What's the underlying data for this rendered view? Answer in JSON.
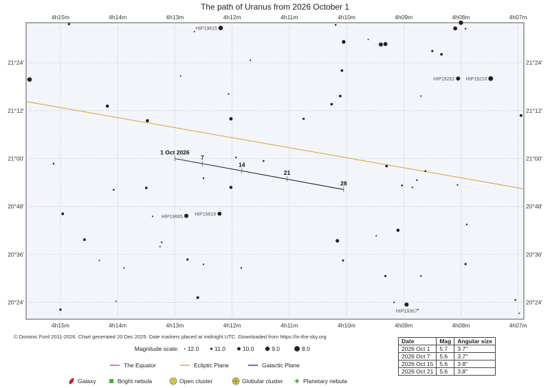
{
  "chart_data": {
    "type": "scatter",
    "title": "The path of Uranus from 2026 October 1",
    "ra_ticks_top": [
      "4h15m",
      "4h14m",
      "4h13m",
      "4h12m",
      "4h11m",
      "4h10m",
      "4h09m",
      "4h08m",
      "4h07m"
    ],
    "ra_ticks_bottom": [
      "4h15m",
      "4h14m",
      "4h13m",
      "4h12m",
      "4h11m",
      "4h10m",
      "4h09m",
      "4h08m",
      "4h07m"
    ],
    "ra_minutes": [
      15,
      14,
      13,
      12,
      11,
      10,
      9,
      8,
      7
    ],
    "dec_ticks": [
      "21°24'",
      "21°12'",
      "21°00'",
      "20°48'",
      "20°36'",
      "20°24'"
    ],
    "dec_values": [
      21.4,
      21.2,
      21.0,
      20.8,
      20.6,
      20.4
    ],
    "xlim_ra_minutes": [
      15.6,
      6.9
    ],
    "ylim_dec_deg": [
      20.33,
      21.567
    ],
    "grid": true,
    "ecliptic": [
      {
        "ra_min": 15.6,
        "dec": 21.238
      },
      {
        "ra_min": 6.9,
        "dec": 20.874
      }
    ],
    "path": {
      "start": {
        "ra_min": 13.0,
        "dec": 21.0
      },
      "end": {
        "ra_min": 10.05,
        "dec": 20.871
      },
      "markers": [
        {
          "label": "1 Oct 2026",
          "ra_min": 13.0,
          "dec": 21.0
        },
        {
          "label": "7",
          "ra_min": 12.52,
          "dec": 20.979
        },
        {
          "label": "14",
          "ra_min": 11.83,
          "dec": 20.949
        },
        {
          "label": "21",
          "ra_min": 11.04,
          "dec": 20.915
        },
        {
          "label": "28",
          "ra_min": 10.05,
          "dec": 20.871
        }
      ]
    },
    "labeled_stars": [
      {
        "name": "HIP19615",
        "ra_min": 12.2,
        "dec": 21.545,
        "mag": 8.8
      },
      {
        "name": "HIP19262",
        "ra_min": 8.05,
        "dec": 21.334,
        "mag": 9.2
      },
      {
        "name": "HIP19216",
        "ra_min": 7.48,
        "dec": 21.334,
        "mag": 8.6
      },
      {
        "name": "HIP19665",
        "ra_min": 12.8,
        "dec": 20.761,
        "mag": 9.1
      },
      {
        "name": "HIP19616",
        "ra_min": 12.22,
        "dec": 20.77,
        "mag": 9.3
      },
      {
        "name": "HIP19367",
        "ra_min": 8.95,
        "dec": 20.391,
        "mag": 9.2
      }
    ],
    "stars": [
      {
        "ra_min": 14.85,
        "dec": 21.561,
        "mag": 11.1
      },
      {
        "ra_min": 12.9,
        "dec": 21.345,
        "mag": 11.9
      },
      {
        "ra_min": 12.66,
        "dec": 21.53,
        "mag": 11.9
      },
      {
        "ra_min": 11.68,
        "dec": 21.41,
        "mag": 11.8
      },
      {
        "ra_min": 10.19,
        "dec": 21.558,
        "mag": 11.5
      },
      {
        "ra_min": 10.05,
        "dec": 21.487,
        "mag": 9.6
      },
      {
        "ra_min": 9.62,
        "dec": 21.497,
        "mag": 11.9
      },
      {
        "ra_min": 9.4,
        "dec": 21.476,
        "mag": 9.3
      },
      {
        "ra_min": 9.32,
        "dec": 21.478,
        "mag": 9.3
      },
      {
        "ra_min": 8.0,
        "dec": 21.567,
        "mag": 9.0
      },
      {
        "ra_min": 8.1,
        "dec": 21.543,
        "mag": 9.3
      },
      {
        "ra_min": 8.5,
        "dec": 21.449,
        "mag": 11.1
      },
      {
        "ra_min": 8.34,
        "dec": 21.435,
        "mag": 10.7
      },
      {
        "ra_min": 7.92,
        "dec": 21.542,
        "mag": 11.6
      },
      {
        "ra_min": 10.08,
        "dec": 21.367,
        "mag": 10.7
      },
      {
        "ra_min": 12.06,
        "dec": 21.27,
        "mag": 11.7
      },
      {
        "ra_min": 10.11,
        "dec": 21.261,
        "mag": 10.7
      },
      {
        "ra_min": 8.7,
        "dec": 21.261,
        "mag": 11.8
      },
      {
        "ra_min": 10.26,
        "dec": 21.227,
        "mag": 10.7
      },
      {
        "ra_min": 14.18,
        "dec": 21.219,
        "mag": 10.1
      },
      {
        "ra_min": 12.02,
        "dec": 21.166,
        "mag": 9.9
      },
      {
        "ra_min": 13.48,
        "dec": 21.158,
        "mag": 10.1
      },
      {
        "ra_min": 10.75,
        "dec": 21.166,
        "mag": 11.1
      },
      {
        "ra_min": 15.54,
        "dec": 21.33,
        "mag": 8.9
      },
      {
        "ra_min": 6.95,
        "dec": 21.18,
        "mag": 10.6
      },
      {
        "ra_min": 15.12,
        "dec": 20.979,
        "mag": 11.5
      },
      {
        "ra_min": 11.93,
        "dec": 21.005,
        "mag": 11.6
      },
      {
        "ra_min": 9.3,
        "dec": 20.969,
        "mag": 10.7
      },
      {
        "ra_min": 11.45,
        "dec": 20.99,
        "mag": 11.5
      },
      {
        "ra_min": 12.5,
        "dec": 20.918,
        "mag": 11.6
      },
      {
        "ra_min": 12.02,
        "dec": 20.88,
        "mag": 10.2
      },
      {
        "ra_min": 13.5,
        "dec": 20.878,
        "mag": 10.8
      },
      {
        "ra_min": 14.07,
        "dec": 20.87,
        "mag": 11.5
      },
      {
        "ra_min": 8.62,
        "dec": 20.948,
        "mag": 11.4
      },
      {
        "ra_min": 8.77,
        "dec": 20.91,
        "mag": 11.6
      },
      {
        "ra_min": 9.03,
        "dec": 20.888,
        "mag": 11.4
      },
      {
        "ra_min": 8.85,
        "dec": 20.88,
        "mag": 11.7
      },
      {
        "ra_min": 8.06,
        "dec": 20.89,
        "mag": 11.7
      },
      {
        "ra_min": 14.96,
        "dec": 20.77,
        "mag": 10.6
      },
      {
        "ra_min": 13.39,
        "dec": 20.759,
        "mag": 11.8
      },
      {
        "ra_min": 9.1,
        "dec": 20.701,
        "mag": 10.1
      },
      {
        "ra_min": 7.9,
        "dec": 20.725,
        "mag": 11.6
      },
      {
        "ra_min": 14.58,
        "dec": 20.662,
        "mag": 10.6
      },
      {
        "ra_min": 13.23,
        "dec": 20.651,
        "mag": 11.6
      },
      {
        "ra_min": 13.26,
        "dec": 20.633,
        "mag": 11.8
      },
      {
        "ra_min": 10.16,
        "dec": 20.657,
        "mag": 9.8
      },
      {
        "ra_min": 9.48,
        "dec": 20.678,
        "mag": 11.8
      },
      {
        "ra_min": 12.78,
        "dec": 20.579,
        "mag": 11.1
      },
      {
        "ra_min": 12.5,
        "dec": 20.559,
        "mag": 11.7
      },
      {
        "ra_min": 10.06,
        "dec": 20.575,
        "mag": 11.2
      },
      {
        "ra_min": 11.84,
        "dec": 20.544,
        "mag": 11.6
      },
      {
        "ra_min": 14.32,
        "dec": 20.575,
        "mag": 11.8
      },
      {
        "ra_min": 13.89,
        "dec": 20.544,
        "mag": 11.8
      },
      {
        "ra_min": 7.92,
        "dec": 20.56,
        "mag": 11.1
      },
      {
        "ra_min": 8.7,
        "dec": 20.51,
        "mag": 11.6
      },
      {
        "ra_min": 9.32,
        "dec": 20.51,
        "mag": 11.1
      },
      {
        "ra_min": 12.6,
        "dec": 20.42,
        "mag": 10.5
      },
      {
        "ra_min": 9.17,
        "dec": 20.4,
        "mag": 11.8
      },
      {
        "ra_min": 14.03,
        "dec": 20.405,
        "mag": 11.8
      },
      {
        "ra_min": 15.0,
        "dec": 20.37,
        "mag": 11.0
      },
      {
        "ra_min": 7.05,
        "dec": 20.41,
        "mag": 11.5
      },
      {
        "ra_min": 8.75,
        "dec": 20.37,
        "mag": 11.9
      },
      {
        "ra_min": 6.98,
        "dec": 20.355,
        "mag": 11.9
      },
      {
        "ra_min": 8.94,
        "dec": 20.394,
        "mag": 11.6
      }
    ]
  },
  "copyright": "© Dominic Ford 2011-2026. Chart generated 20 Dec 2025. Date markers placed at midnight UTC. Downloaded from https://in-the-sky.org",
  "magnitude_scale": {
    "label": "Magnitude scale:",
    "entries": [
      {
        "mag": 12.0,
        "label": "12.0"
      },
      {
        "mag": 11.0,
        "label": "11.0"
      },
      {
        "mag": 10.0,
        "label": "10.0"
      },
      {
        "mag": 9.0,
        "label": "9.0"
      },
      {
        "mag": 8.0,
        "label": "8.0"
      }
    ]
  },
  "legend": {
    "lines": [
      {
        "label": "The Equator",
        "color": "#cc33cc"
      },
      {
        "label": "Ecliptic Plane",
        "color": "#d4a62a"
      },
      {
        "label": "Galactic Plane",
        "color": "#2a2ab8"
      }
    ],
    "objects": [
      {
        "label": "Galaxy",
        "color": "#cc2222",
        "icon": "galaxy-icon"
      },
      {
        "label": "Bright nebula",
        "color": "#44aa44",
        "icon": "nebula-icon"
      },
      {
        "label": "Open cluster",
        "color": "#cccc33",
        "icon": "open-cluster-icon"
      },
      {
        "label": "Globular cluster",
        "color": "#cccc33",
        "icon": "globular-cluster-icon"
      },
      {
        "label": "Planetary nebula",
        "color": "#44aa44",
        "icon": "planetary-nebula-icon"
      }
    ]
  },
  "table": {
    "headers": [
      "Date",
      "Mag",
      "Angular size"
    ],
    "rows": [
      [
        "2026 Oct 1",
        "5.7",
        "3.7\""
      ],
      [
        "2026 Oct 7",
        "5.6",
        "3.7\""
      ],
      [
        "2026 Oct 15",
        "5.6",
        "3.8\""
      ],
      [
        "2026 Oct 21",
        "5.6",
        "3.8\""
      ]
    ]
  },
  "colors": {
    "frame_bg": "#f2f5fa",
    "grid": "#b8c0cc",
    "star": "#222222",
    "path": "#111111",
    "ecliptic": "#d4a62a"
  }
}
